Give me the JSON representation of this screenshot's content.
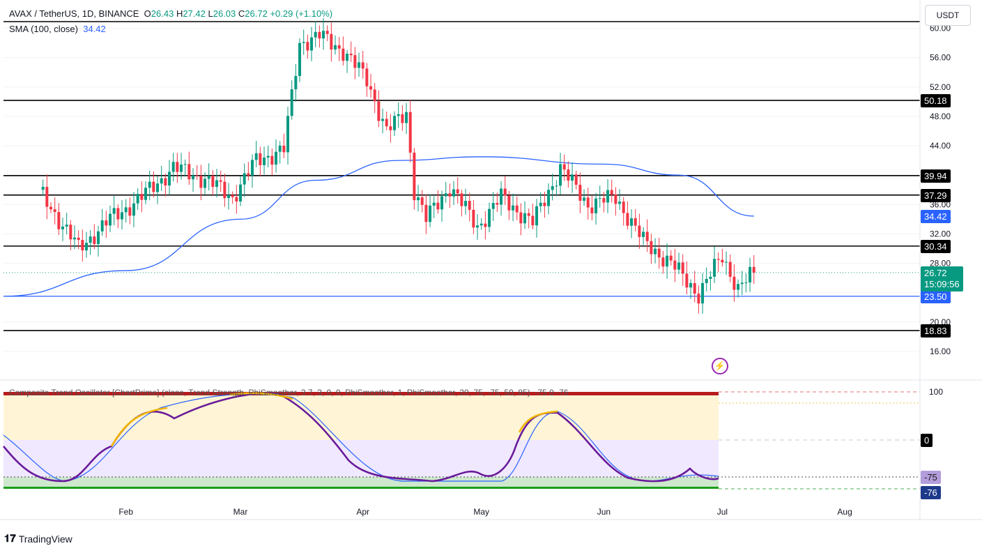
{
  "header": {
    "symbol": "AVAX / TetherUS, 1D, BINANCE",
    "o_label": "O",
    "o_val": "26.43",
    "h_label": "H",
    "h_val": "27.42",
    "l_label": "L",
    "l_val": "26.03",
    "c_label": "C",
    "c_val": "26.72",
    "change": "+0.29 (+1.10%)",
    "sma_label": "SMA (100, close)",
    "sma_val": "34.42"
  },
  "currency_button": "USDT",
  "countdown": "15:09:56",
  "oscillator": {
    "title": "Composite Trend Oscillator [ChartPrime] (close, Trend Strength, PhiSmoother, 3.7, 3, 0, 0, PhiSmoother, 1, PhiSmoother, 20, 75, -75, 50, 85)",
    "vals": "-75  0  -76",
    "levels": [
      100,
      0
    ],
    "badge_a": "-75",
    "badge_b": "-76"
  },
  "brand": "TradingView",
  "colors": {
    "up": "#089981",
    "down": "#f23645",
    "sma": "#2962ff",
    "osc_fast": "#5b21b6",
    "osc_slow": "#2962ff",
    "level_line": "#000000"
  },
  "chart_data": {
    "type": "candlestick",
    "x_ticks": [
      "Feb",
      "Mar",
      "Apr",
      "May",
      "Jun",
      "Jul",
      "Aug"
    ],
    "y_ticks": [
      "16.00",
      "20.00",
      "24.00",
      "28.00",
      "32.00",
      "36.00",
      "40.00",
      "44.00",
      "48.00",
      "52.00",
      "56.00",
      "60.00"
    ],
    "ylim": [
      14.5,
      63.5
    ],
    "horizontal_levels": [
      "50.18",
      "39.94",
      "37.29",
      "30.34",
      "23.50",
      "18.83"
    ],
    "last_price": "26.72",
    "sma_last": "34.42",
    "close_path": [
      {
        "date": "2024-01-10",
        "close": 38
      },
      {
        "date": "2024-01-20",
        "close": 30
      },
      {
        "date": "2024-01-28",
        "close": 34
      },
      {
        "date": "2024-02-05",
        "close": 37
      },
      {
        "date": "2024-02-13",
        "close": 41
      },
      {
        "date": "2024-02-21",
        "close": 39.5
      },
      {
        "date": "2024-02-28",
        "close": 37
      },
      {
        "date": "2024-03-05",
        "close": 42
      },
      {
        "date": "2024-03-12",
        "close": 43.5
      },
      {
        "date": "2024-03-16",
        "close": 58
      },
      {
        "date": "2024-03-21",
        "close": 59
      },
      {
        "date": "2024-03-27",
        "close": 57
      },
      {
        "date": "2024-04-02",
        "close": 53
      },
      {
        "date": "2024-04-07",
        "close": 46
      },
      {
        "date": "2024-04-12",
        "close": 48.5
      },
      {
        "date": "2024-04-14",
        "close": 38
      },
      {
        "date": "2024-04-17",
        "close": 34
      },
      {
        "date": "2024-04-23",
        "close": 38.5
      },
      {
        "date": "2024-04-30",
        "close": 33
      },
      {
        "date": "2024-05-06",
        "close": 37
      },
      {
        "date": "2024-05-14",
        "close": 33.5
      },
      {
        "date": "2024-05-21",
        "close": 41
      },
      {
        "date": "2024-05-28",
        "close": 36
      },
      {
        "date": "2024-06-04",
        "close": 37
      },
      {
        "date": "2024-06-11",
        "close": 31
      },
      {
        "date": "2024-06-18",
        "close": 28
      },
      {
        "date": "2024-06-25",
        "close": 23.8
      },
      {
        "date": "2024-07-01",
        "close": 29
      },
      {
        "date": "2024-07-05",
        "close": 24.5
      },
      {
        "date": "2024-07-09",
        "close": 26.7
      }
    ],
    "sma_path": [
      {
        "date": "2024-01-01",
        "value": 23.5
      },
      {
        "date": "2024-02-01",
        "value": 27
      },
      {
        "date": "2024-03-01",
        "value": 34
      },
      {
        "date": "2024-03-20",
        "value": 39.3
      },
      {
        "date": "2024-04-10",
        "value": 42
      },
      {
        "date": "2024-05-01",
        "value": 42.5
      },
      {
        "date": "2024-06-01",
        "value": 41.5
      },
      {
        "date": "2024-06-20",
        "value": 40
      },
      {
        "date": "2024-07-09",
        "value": 34.42
      }
    ]
  }
}
